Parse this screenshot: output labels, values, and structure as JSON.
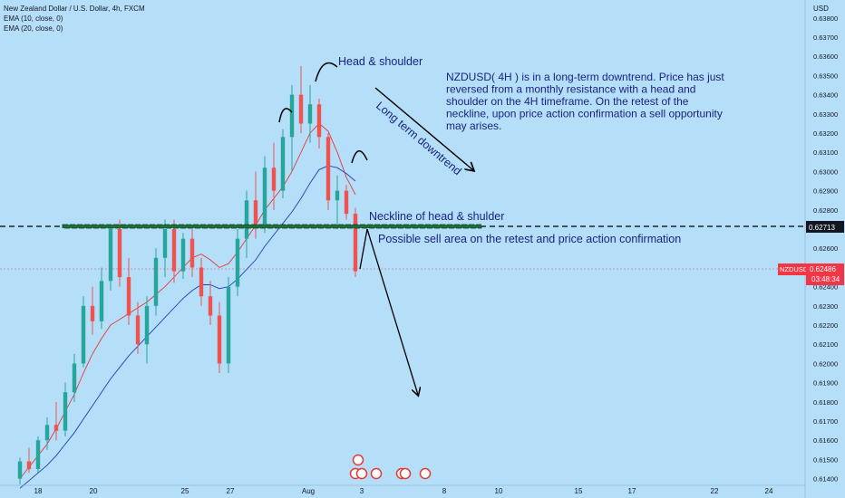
{
  "header": {
    "symbol_line": "New Zealand Dollar / U.S. Dollar, 4h, FXCM",
    "ema10": "EMA (10, close, 0)",
    "ema20": "EMA (20, close, 0)"
  },
  "axis": {
    "currency": "USD",
    "y_ticks": [
      "0.63800",
      "0.63700",
      "0.63600",
      "0.63500",
      "0.63400",
      "0.63300",
      "0.63200",
      "0.63100",
      "0.63000",
      "0.62900",
      "0.62800",
      "0.62600",
      "0.62400",
      "0.62300",
      "0.62200",
      "0.62100",
      "0.62000",
      "0.61900",
      "0.61800",
      "0.61700",
      "0.61600",
      "0.61500",
      "0.61400"
    ],
    "x_ticks": [
      "18",
      "20",
      "25",
      "27",
      "Aug",
      "3",
      "8",
      "10",
      "15",
      "17",
      "22",
      "24"
    ]
  },
  "labels": {
    "neckline_price": "0.62713",
    "symbol_tag": "NZDUSD",
    "current_price": "0.62486",
    "countdown": "03:48:34"
  },
  "annotations": {
    "head_shoulder": "Head & shoulder",
    "description": [
      "NZDUSD( 4H ) is in a long-term downtrend. Price has just",
      "reversed from a monthly resistance with a head and",
      "shoulder on the 4H timeframe. On the retest of the",
      "neckline, upon price action confirmation a sell opportunity",
      "may arises."
    ],
    "downtrend": "Long term downtrend",
    "neckline": "Neckline of head & shulder",
    "sell_area": "Possible sell area on the retest and price action confirmation"
  },
  "colors": {
    "background": "#b5def9",
    "bull": "#26a69a",
    "bear": "#ef5350",
    "ema10": "#e53935",
    "ema20": "#1e3fbf",
    "annotation_text": "#1a237e",
    "price_tag": "#f23645"
  },
  "chart_data": {
    "type": "candlestick",
    "timeframe": "4h",
    "ylim": [
      0.6137,
      0.6387
    ],
    "neckline": 0.62713,
    "last_price": 0.62486,
    "series": [
      {
        "name": "EMA (10, close, 0)",
        "values": [
          0.614,
          0.6146,
          0.6152,
          0.6158,
          0.6166,
          0.6175,
          0.6184,
          0.6195,
          0.6205,
          0.6213,
          0.622,
          0.6223,
          0.6226,
          0.6229,
          0.6232,
          0.6236,
          0.624,
          0.6245,
          0.625,
          0.6255,
          0.6257,
          0.6254,
          0.625,
          0.6252,
          0.6258,
          0.6265,
          0.6272,
          0.628,
          0.6286,
          0.6292,
          0.63,
          0.631,
          0.632,
          0.6325,
          0.6321,
          0.631,
          0.6297,
          0.6288
        ]
      },
      {
        "name": "EMA (20, close, 0)",
        "values": [
          0.6135,
          0.6139,
          0.6143,
          0.6147,
          0.6152,
          0.6158,
          0.6164,
          0.6171,
          0.6178,
          0.6185,
          0.6192,
          0.6198,
          0.6204,
          0.6209,
          0.6214,
          0.6219,
          0.6224,
          0.6229,
          0.6234,
          0.6238,
          0.6241,
          0.6241,
          0.6239,
          0.624,
          0.6244,
          0.6249,
          0.6254,
          0.6261,
          0.6267,
          0.6273,
          0.6279,
          0.6286,
          0.6294,
          0.6301,
          0.6303,
          0.6302,
          0.6299,
          0.6295
        ]
      }
    ]
  }
}
